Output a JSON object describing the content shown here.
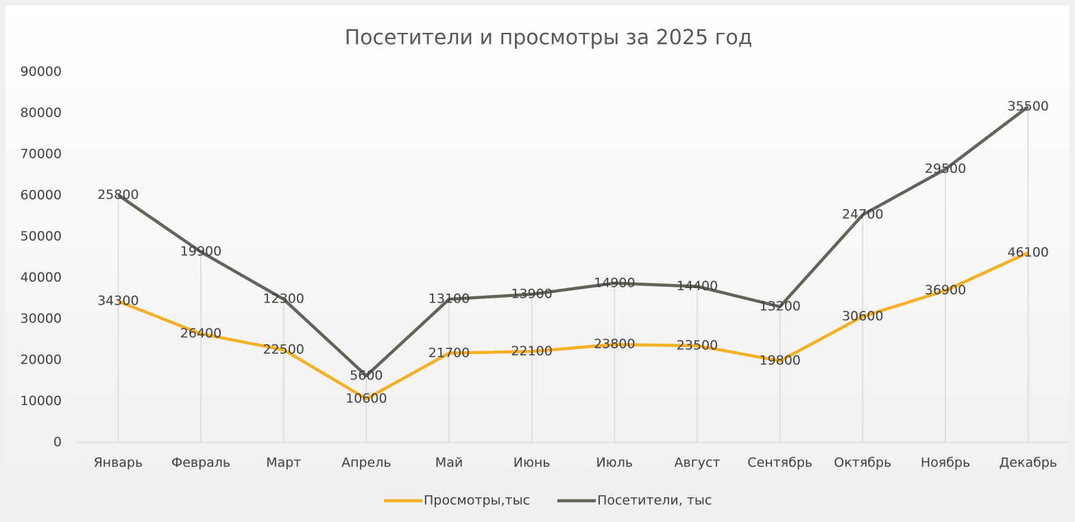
{
  "chart_data": {
    "type": "line",
    "stacked": true,
    "drop_lines": true,
    "title": "Посетители и просмотры за 2025 год",
    "categories": [
      "Январь",
      "Февраль",
      "Март",
      "Апрель",
      "Май",
      "Июнь",
      "Июль",
      "Август",
      "Сентябрь",
      "Октябрь",
      "Ноябрь",
      "Декабрь"
    ],
    "series": [
      {
        "name": "Просмотры,тыс",
        "color": "#f5b025",
        "values": [
          34300,
          26400,
          22500,
          10600,
          21700,
          22100,
          23800,
          23500,
          19800,
          30600,
          36900,
          46100
        ]
      },
      {
        "name": "Посетители, тыс",
        "color": "#62645a",
        "values": [
          25800,
          19900,
          12300,
          5600,
          13100,
          13900,
          14900,
          14400,
          13200,
          24700,
          29500,
          35500
        ]
      }
    ],
    "ylim": [
      0,
      90000
    ],
    "yticks": [
      0,
      10000,
      20000,
      30000,
      40000,
      50000,
      60000,
      70000,
      80000,
      90000
    ],
    "legend": "bottom"
  }
}
